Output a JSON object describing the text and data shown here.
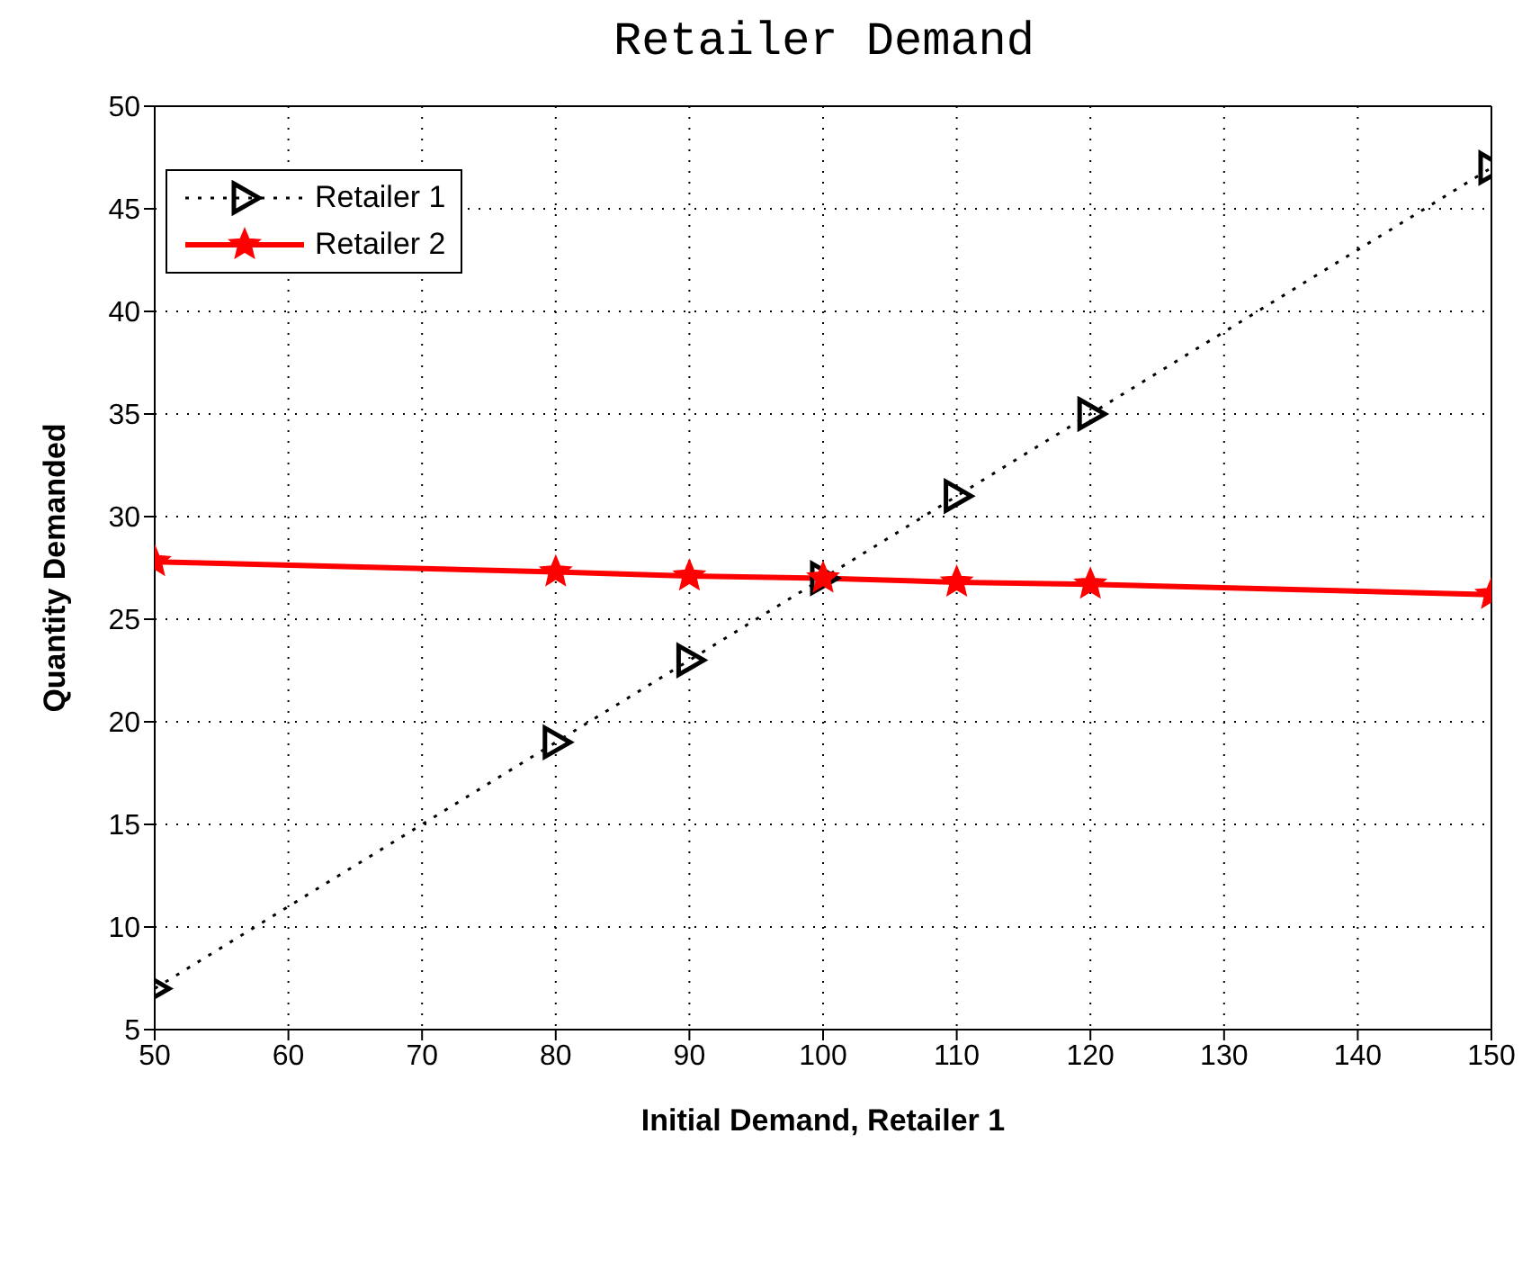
{
  "chart_data": {
    "type": "line",
    "title": "Retailer Demand",
    "xlabel": "Initial Demand, Retailer 1",
    "ylabel": "Quantity Demanded",
    "xlim": [
      50,
      150
    ],
    "xticks": [
      50,
      60,
      70,
      80,
      90,
      100,
      110,
      120,
      130,
      140,
      150
    ],
    "ylim": [
      5,
      50
    ],
    "yticks": [
      5,
      10,
      15,
      20,
      25,
      30,
      35,
      40,
      45,
      50
    ],
    "grid": true,
    "legend": "top left",
    "x": [
      50,
      80,
      90,
      100,
      110,
      120,
      150
    ],
    "series": [
      {
        "name": "Retailer 1",
        "color": "#000000",
        "values": [
          7,
          19,
          23,
          27,
          31,
          35,
          47
        ],
        "marker": "triangle",
        "line_style": "dotted"
      },
      {
        "name": "Retailer 2",
        "color": "#ff0000",
        "values": [
          27.8,
          27.3,
          27.1,
          27.0,
          26.8,
          26.7,
          26.2
        ],
        "marker": "star",
        "line_style": "solid"
      }
    ]
  }
}
